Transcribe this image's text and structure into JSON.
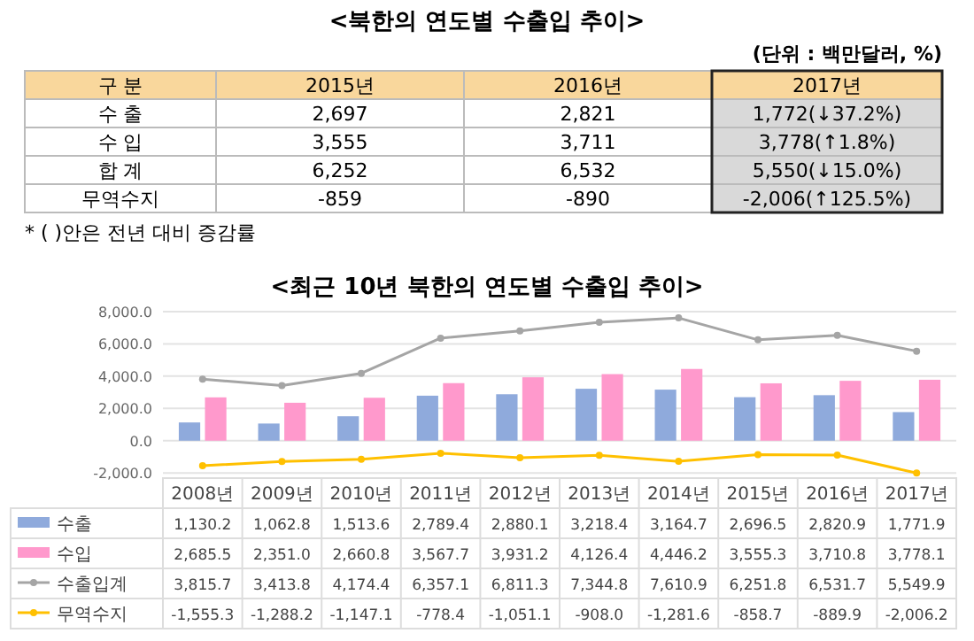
{
  "chart_data": [
    {
      "type": "other",
      "title": "<북한의 연도별 수출입 추이>",
      "subtitle": "(단위 : 백만달러, %)",
      "categories": [
        "구 분",
        "2015년",
        "2016년",
        "2017년"
      ],
      "y_categories": [
        "수 출",
        "수 입",
        "합 계",
        "무역수지"
      ],
      "cell_labels": [
        [
          "2,697",
          "2,821",
          "1,772(↓37.2%)"
        ],
        [
          "3,555",
          "3,711",
          "3,778(↑1.8%)"
        ],
        [
          "6,252",
          "6,532",
          "5,550(↓15.0%)"
        ],
        [
          "-859",
          "-890",
          "-2,006(↑125.5%)"
        ]
      ],
      "annotations": [
        "* (      )안은 전년 대비 증감률"
      ]
    },
    {
      "type": "bar",
      "title": "<최근 10년 북한의 연도별 수출입 추이>",
      "categories": [
        "2008년",
        "2009년",
        "2010년",
        "2011년",
        "2012년",
        "2013년",
        "2014년",
        "2015년",
        "2016년",
        "2017년"
      ],
      "series": [
        {
          "name": "수출",
          "type": "bar",
          "color": "#8faadc",
          "values": [
            1130.2,
            1062.8,
            1513.6,
            2789.4,
            2880.1,
            3218.4,
            3164.7,
            2696.5,
            2820.9,
            1771.9
          ],
          "value_labels": [
            "1,130.2",
            "1,062.8",
            "1,513.6",
            "2,789.4",
            "2,880.1",
            "3,218.4",
            "3,164.7",
            "2,696.5",
            "2,820.9",
            "1,771.9"
          ]
        },
        {
          "name": "수입",
          "type": "bar",
          "color": "#ff99cc",
          "values": [
            2685.5,
            2351.0,
            2660.8,
            3567.7,
            3931.2,
            4126.4,
            4446.2,
            3555.3,
            3710.8,
            3778.1
          ],
          "value_labels": [
            "2,685.5",
            "2,351.0",
            "2,660.8",
            "3,567.7",
            "3,931.2",
            "4,126.4",
            "4,446.2",
            "3,555.3",
            "3,710.8",
            "3,778.1"
          ]
        },
        {
          "name": "수출입계",
          "type": "line",
          "color": "#a5a5a5",
          "values": [
            3815.7,
            3413.8,
            4174.4,
            6357.1,
            6811.3,
            7344.8,
            7610.9,
            6251.8,
            6531.7,
            5549.9
          ],
          "value_labels": [
            "3,815.7",
            "3,413.8",
            "4,174.4",
            "6,357.1",
            "6,811.3",
            "7,344.8",
            "7,610.9",
            "6,251.8",
            "6,531.7",
            "5,549.9"
          ]
        },
        {
          "name": "무역수지",
          "type": "line",
          "color": "#ffc000",
          "values": [
            -1555.3,
            -1288.2,
            -1147.1,
            -778.4,
            -1051.1,
            -908.0,
            -1281.6,
            -858.7,
            -889.9,
            -2006.2
          ],
          "value_labels": [
            "-1,555.3",
            "-1,288.2",
            "-1,147.1",
            "-778.4",
            "-1,051.1",
            "-908.0",
            "-1,281.6",
            "-858.7",
            "-889.9",
            "-2,006.2"
          ]
        }
      ],
      "ylim": [
        -2100,
        8000
      ],
      "yticks": [
        {
          "value": -2000,
          "label": "-2,000.0"
        },
        {
          "value": 0,
          "label": "0.0"
        },
        {
          "value": 2000,
          "label": "2,000.0"
        },
        {
          "value": 4000,
          "label": "4,000.0"
        },
        {
          "value": 6000,
          "label": "6,000.0"
        },
        {
          "value": 8000,
          "label": "8,000.0"
        }
      ],
      "grid": "y",
      "legend": "bottom",
      "marker": "circle"
    }
  ]
}
